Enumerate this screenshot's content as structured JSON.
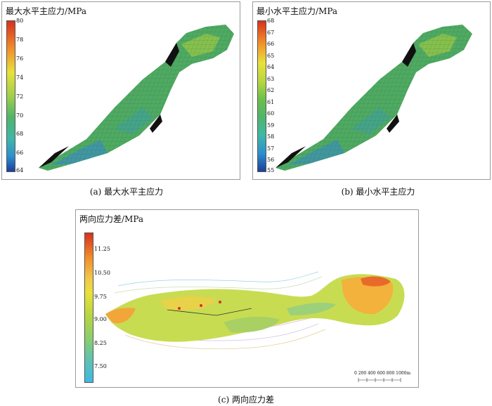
{
  "panels": [
    {
      "title": "最大水平主应力/MPa",
      "colorbar_ticks": [
        "80",
        "78",
        "76",
        "74",
        "72",
        "70",
        "68",
        "66",
        "64"
      ],
      "caption": "(a) 最大水平主应力"
    },
    {
      "title": "最小水平主应力/MPa",
      "colorbar_ticks": [
        "68",
        "67",
        "66",
        "65",
        "64",
        "63",
        "62",
        "61",
        "60",
        "59",
        "58",
        "57",
        "56",
        "55"
      ],
      "caption": "(b) 最小水平主应力"
    },
    {
      "title": "两向应力差/MPa",
      "colorbar_ticks": [
        "11.25",
        "10.50",
        "9.75",
        "9.00",
        "8.25",
        "7.50"
      ],
      "caption": "(c) 两向应力差",
      "scale_bar": "0  200 400 600 800 1000m"
    }
  ],
  "colors": {
    "jet_top": "#d7301f",
    "jet_yellow": "#e8e23a",
    "jet_green": "#6cc04a",
    "jet_teal": "#3fb8a6",
    "jet_bottom": "#1b4fa0",
    "mesh_green": "#4faa62",
    "mesh_dark_edge": "#111111"
  }
}
